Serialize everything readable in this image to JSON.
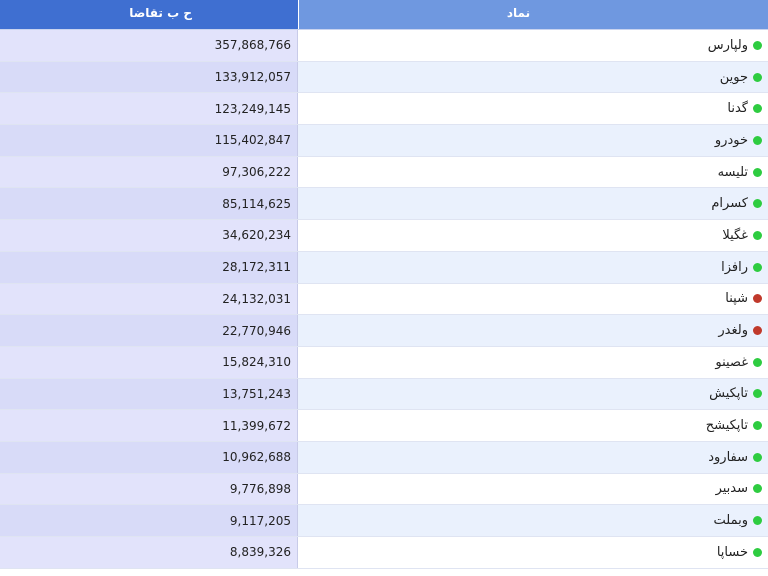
{
  "colors": {
    "header_value_bg": "#3f6fd1",
    "header_symbol_bg": "#6f98e0",
    "status_up": "#2ecc40",
    "status_down": "#c0392b"
  },
  "header": {
    "value_label": "ح ب تقاضا",
    "symbol_label": "نماد"
  },
  "rows": [
    {
      "symbol": "ولپارس",
      "value": "357,868,766",
      "status": "up"
    },
    {
      "symbol": "جوین",
      "value": "133,912,057",
      "status": "up"
    },
    {
      "symbol": "گدنا",
      "value": "123,249,145",
      "status": "up"
    },
    {
      "symbol": "خودرو",
      "value": "115,402,847",
      "status": "up"
    },
    {
      "symbol": "تلیسه",
      "value": "97,306,222",
      "status": "up"
    },
    {
      "symbol": "کسرام",
      "value": "85,114,625",
      "status": "up"
    },
    {
      "symbol": "غگیلا",
      "value": "34,620,234",
      "status": "up"
    },
    {
      "symbol": "رافزا",
      "value": "28,172,311",
      "status": "up"
    },
    {
      "symbol": "شپنا",
      "value": "24,132,031",
      "status": "down"
    },
    {
      "symbol": "ولغدر",
      "value": "22,770,946",
      "status": "down"
    },
    {
      "symbol": "غصینو",
      "value": "15,824,310",
      "status": "up"
    },
    {
      "symbol": "تاپکیش",
      "value": "13,751,243",
      "status": "up"
    },
    {
      "symbol": "تاپکیشح",
      "value": "11,399,672",
      "status": "up"
    },
    {
      "symbol": "سفارود",
      "value": "10,962,688",
      "status": "up"
    },
    {
      "symbol": "سدبیر",
      "value": "9,776,898",
      "status": "up"
    },
    {
      "symbol": "وبملت",
      "value": "9,117,205",
      "status": "up"
    },
    {
      "symbol": "خساپا",
      "value": "8,839,326",
      "status": "up"
    }
  ]
}
